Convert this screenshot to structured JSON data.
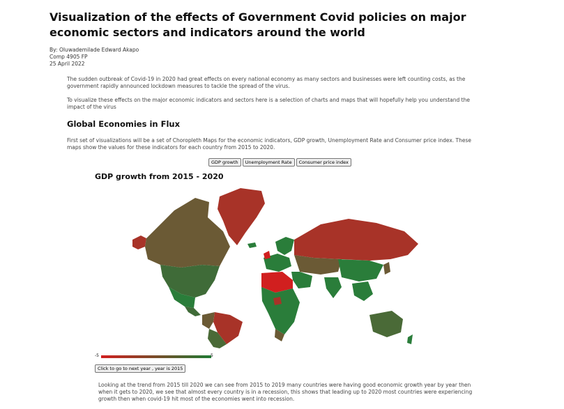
{
  "header": {
    "title": "Visualization of the effects of Government Covid policies on major economic sectors and indicators around the world",
    "author": "By: Oluwademilade Edward Akapo",
    "course": "Comp 4905 FP",
    "date": "25 April 2022"
  },
  "intro": {
    "p1": "The sudden outbreak of Covid-19 in 2020 had great effects on every national economy as many sectors and businesses were left counting costs, as the government rapidly announced lockdown measures to tackle the spread of the virus.",
    "p2": "To visualize these effects on the major economic indicators and sectors here is a selection of charts and maps that will hopefully help you understand the impact of the virus"
  },
  "section": {
    "title": "Global Economies in Flux",
    "description": "First set of visualizations will be a set of Choropleth Maps for the economic indicators, GDP growth, Unemployment Rate and Consumer price index. These maps show the values for these indicators for each country from 2015 to 2020."
  },
  "indicator_buttons": [
    "GDP growth",
    "Unemployment Rate",
    "Consumer price index"
  ],
  "map": {
    "title": "GDP growth from 2015 - 2020",
    "legend_min": "-5",
    "legend_max": "5",
    "colors": {
      "low": "#d11f1f",
      "mid": "#6b5a35",
      "high": "#1f7a33"
    },
    "next_button": "Click to go to next year , year is 2015"
  },
  "conclusion": "Looking at the trend from 2015 till 2020 we can see from 2015 to 2019 many countries were having good economic growth year by year then when it gets to 2020, we see that almost every country is in a recession, this shows that leading up to 2020 most countries were experiencing growth then when covid-19 hit most of the economies went into recession."
}
